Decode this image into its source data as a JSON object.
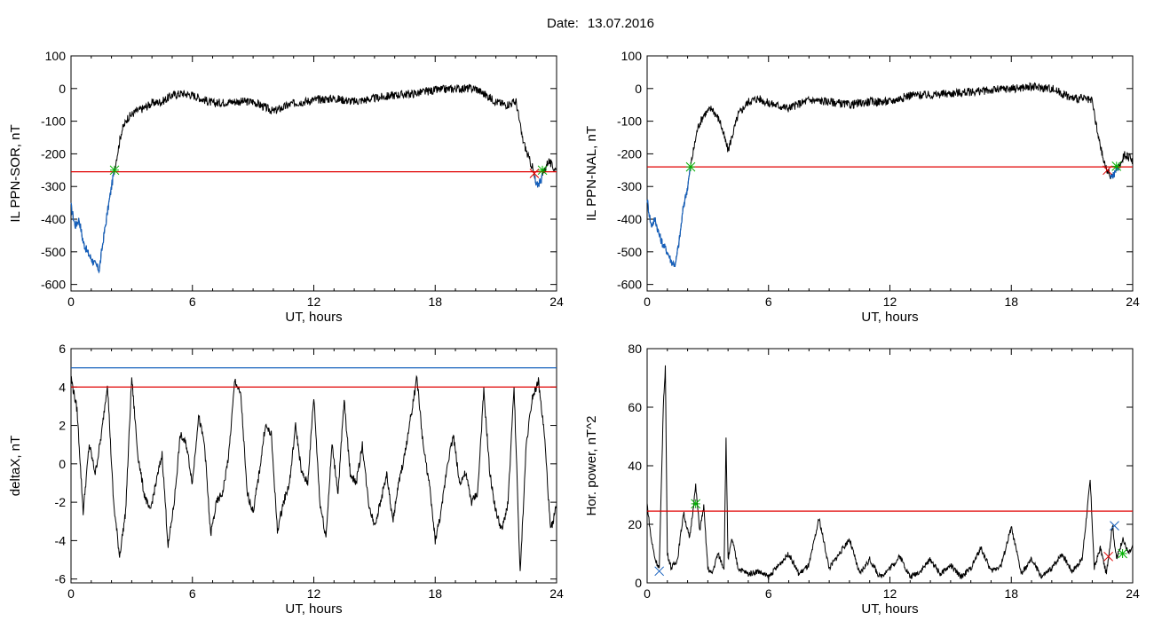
{
  "header": {
    "date_label": "Date:",
    "date_value": "13.07.2016"
  },
  "chart_data": [
    {
      "type": "line",
      "id": "ppn-sor",
      "xlabel": "UT, hours",
      "ylabel": "IL PPN-SOR, nT",
      "xlim": [
        0,
        24
      ],
      "ylim": [
        -620,
        100
      ],
      "xticks": [
        0,
        6,
        12,
        18,
        24
      ],
      "yticks": [
        100,
        0,
        -100,
        -200,
        -300,
        -400,
        -500,
        -600
      ],
      "threshold": {
        "value": -255,
        "color": "#e00000"
      },
      "highlight_color": "#1560bd",
      "series": [
        {
          "x": [
            0,
            0.2,
            0.4,
            0.6,
            0.8,
            1.0,
            1.2,
            1.4,
            1.6,
            1.8,
            2.0,
            2.2,
            2.5,
            2.8,
            3.2,
            3.6,
            4.0,
            4.5,
            5.0,
            5.5,
            6.0,
            7,
            8,
            9,
            10,
            11,
            12,
            13,
            14,
            15,
            16,
            17,
            18,
            19,
            20,
            21,
            21.5,
            22,
            22.3,
            22.6,
            22.8,
            23.0,
            23.2,
            23.4,
            23.6,
            23.8,
            24
          ],
          "y": [
            -360,
            -420,
            -400,
            -470,
            -500,
            -520,
            -540,
            -555,
            -460,
            -380,
            -300,
            -230,
            -130,
            -90,
            -70,
            -60,
            -45,
            -40,
            -20,
            -15,
            -20,
            -45,
            -40,
            -40,
            -70,
            -45,
            -35,
            -30,
            -40,
            -30,
            -20,
            -15,
            -5,
            0,
            0,
            -40,
            -50,
            -40,
            -150,
            -210,
            -240,
            -300,
            -280,
            -250,
            -220,
            -240,
            -250
          ]
        }
      ],
      "markers": [
        {
          "x": 2.15,
          "y": -250,
          "symbol": "asterisk",
          "color": "#00b000"
        },
        {
          "x": 22.9,
          "y": -260,
          "symbol": "cross",
          "color": "#e00000"
        },
        {
          "x": 23.3,
          "y": -250,
          "symbol": "asterisk",
          "color": "#00b000"
        }
      ]
    },
    {
      "type": "line",
      "id": "ppn-nal",
      "xlabel": "UT, hours",
      "ylabel": "IL PPN-NAL, nT",
      "xlim": [
        0,
        24
      ],
      "ylim": [
        -620,
        100
      ],
      "xticks": [
        0,
        6,
        12,
        18,
        24
      ],
      "yticks": [
        100,
        0,
        -100,
        -200,
        -300,
        -400,
        -500,
        -600
      ],
      "threshold": {
        "value": -240,
        "color": "#e00000"
      },
      "highlight_color": "#1560bd",
      "series": [
        {
          "x": [
            0,
            0.2,
            0.4,
            0.6,
            0.8,
            1.0,
            1.2,
            1.4,
            1.6,
            1.8,
            2.0,
            2.2,
            2.5,
            2.8,
            3.2,
            3.6,
            4.0,
            4.5,
            5.0,
            5.5,
            6.0,
            7,
            8,
            9,
            10,
            11,
            12,
            13,
            14,
            15,
            16,
            17,
            18,
            19,
            20,
            21,
            21.5,
            22,
            22.3,
            22.6,
            22.8,
            23.0,
            23.2,
            23.4,
            23.6,
            23.8,
            24
          ],
          "y": [
            -340,
            -420,
            -400,
            -450,
            -480,
            -500,
            -530,
            -540,
            -460,
            -360,
            -300,
            -220,
            -120,
            -80,
            -60,
            -100,
            -190,
            -80,
            -40,
            -30,
            -45,
            -60,
            -35,
            -40,
            -50,
            -40,
            -40,
            -20,
            -20,
            -15,
            -10,
            -5,
            0,
            5,
            0,
            -30,
            -30,
            -40,
            -150,
            -230,
            -260,
            -270,
            -250,
            -230,
            -200,
            -210,
            -220
          ]
        }
      ],
      "markers": [
        {
          "x": 2.15,
          "y": -240,
          "symbol": "asterisk",
          "color": "#00b000"
        },
        {
          "x": 22.75,
          "y": -250,
          "symbol": "cross",
          "color": "#e00000"
        },
        {
          "x": 23.2,
          "y": -238,
          "symbol": "asterisk",
          "color": "#00b000"
        }
      ]
    },
    {
      "type": "line",
      "id": "deltax",
      "xlabel": "UT, hours",
      "ylabel": "deltaX, nT",
      "xlim": [
        0,
        24
      ],
      "ylim": [
        -6.2,
        6
      ],
      "xticks": [
        0,
        6,
        12,
        18,
        24
      ],
      "yticks": [
        6,
        4,
        2,
        0,
        -2,
        -4,
        -6
      ],
      "threshold": {
        "value": 4,
        "color": "#e00000"
      },
      "threshold2": {
        "value": 5,
        "color": "#1560bd"
      },
      "series": [
        {
          "x": [
            0,
            0.3,
            0.6,
            0.9,
            1.2,
            1.5,
            1.8,
            2.1,
            2.4,
            2.7,
            3.0,
            3.3,
            3.6,
            3.9,
            4.2,
            4.5,
            4.8,
            5.1,
            5.4,
            5.7,
            6.0,
            6.3,
            6.6,
            6.9,
            7.2,
            7.5,
            7.8,
            8.1,
            8.4,
            8.7,
            9.0,
            9.3,
            9.6,
            9.9,
            10.2,
            10.5,
            10.8,
            11.1,
            11.4,
            11.7,
            12.0,
            12.3,
            12.6,
            12.9,
            13.2,
            13.5,
            13.8,
            14.1,
            14.4,
            14.7,
            15.0,
            15.3,
            15.6,
            15.9,
            16.2,
            16.5,
            16.8,
            17.1,
            17.4,
            17.7,
            18.0,
            18.3,
            18.6,
            18.9,
            19.2,
            19.5,
            19.8,
            20.1,
            20.4,
            20.7,
            21.0,
            21.3,
            21.6,
            21.9,
            22.2,
            22.5,
            22.8,
            23.1,
            23.4,
            23.7,
            24.0
          ],
          "y": [
            4.5,
            2.8,
            -2.5,
            1.0,
            -0.5,
            1.5,
            4.2,
            -2.0,
            -4.8,
            -2.5,
            4.5,
            0.5,
            -1.5,
            -2.5,
            -1.0,
            0.5,
            -4.3,
            -2.0,
            1.5,
            1.0,
            -1.0,
            2.5,
            1.0,
            -3.7,
            -2.0,
            -1.5,
            0.5,
            4.4,
            3.5,
            -1.5,
            -2.5,
            -0.5,
            2.0,
            1.5,
            -3.5,
            -2.0,
            -1.0,
            2.0,
            -0.5,
            -1.0,
            3.5,
            -2.0,
            -3.8,
            1.0,
            -1.5,
            3.3,
            -0.5,
            -1.0,
            1.0,
            -2.0,
            -3.2,
            -2.0,
            -0.5,
            -3.0,
            -1.0,
            0.5,
            2.5,
            4.5,
            1.0,
            -1.0,
            -4.0,
            -2.5,
            0.0,
            1.5,
            -1.0,
            -0.5,
            -2.0,
            -1.5,
            3.8,
            -0.5,
            -2.5,
            -3.5,
            -2.0,
            4.0,
            -5.8,
            1.0,
            3.5,
            4.3,
            1.5,
            -3.5,
            -2.2
          ]
        }
      ]
    },
    {
      "type": "line",
      "id": "hor-power",
      "xlabel": "UT, hours",
      "ylabel": "Hor. power, nT^2",
      "xlim": [
        0,
        24
      ],
      "ylim": [
        0,
        80
      ],
      "xticks": [
        0,
        6,
        12,
        18,
        24
      ],
      "yticks": [
        80,
        60,
        40,
        20,
        0
      ],
      "threshold": {
        "value": 24.5,
        "color": "#e00000"
      },
      "series": [
        {
          "x": [
            0,
            0.2,
            0.4,
            0.6,
            0.8,
            0.9,
            1.0,
            1.2,
            1.5,
            1.8,
            2.1,
            2.4,
            2.6,
            2.8,
            3.0,
            3.2,
            3.5,
            3.8,
            3.9,
            4.0,
            4.2,
            4.5,
            5.0,
            5.5,
            6.0,
            6.5,
            7.0,
            7.5,
            8.0,
            8.5,
            9.0,
            9.5,
            10,
            10.5,
            11,
            11.5,
            12,
            12.5,
            13,
            13.5,
            14,
            14.5,
            15,
            15.5,
            16,
            16.5,
            17,
            17.5,
            18,
            18.5,
            19,
            19.5,
            20,
            20.5,
            21,
            21.5,
            21.9,
            22.1,
            22.4,
            22.7,
            23.0,
            23.2,
            23.5,
            23.8,
            24
          ],
          "y": [
            27,
            15,
            8,
            5,
            60,
            74,
            10,
            5,
            8,
            24,
            15,
            33,
            18,
            26,
            5,
            3,
            10,
            5,
            49,
            8,
            15,
            5,
            3,
            4,
            2,
            6,
            10,
            3,
            6,
            22,
            5,
            10,
            15,
            3,
            8,
            2,
            5,
            9,
            2,
            4,
            8,
            3,
            6,
            2,
            5,
            12,
            4,
            6,
            19,
            3,
            8,
            2,
            5,
            10,
            4,
            8,
            35,
            5,
            12,
            3,
            20,
            8,
            15,
            10,
            12
          ]
        }
      ],
      "markers": [
        {
          "x": 0.6,
          "y": 4,
          "symbol": "cross",
          "color": "#1560bd"
        },
        {
          "x": 2.4,
          "y": 27,
          "symbol": "asterisk",
          "color": "#00b000"
        },
        {
          "x": 22.8,
          "y": 9,
          "symbol": "cross",
          "color": "#e00000"
        },
        {
          "x": 23.1,
          "y": 19.5,
          "symbol": "cross",
          "color": "#1560bd"
        },
        {
          "x": 23.5,
          "y": 10,
          "symbol": "asterisk",
          "color": "#00b000"
        }
      ]
    }
  ]
}
